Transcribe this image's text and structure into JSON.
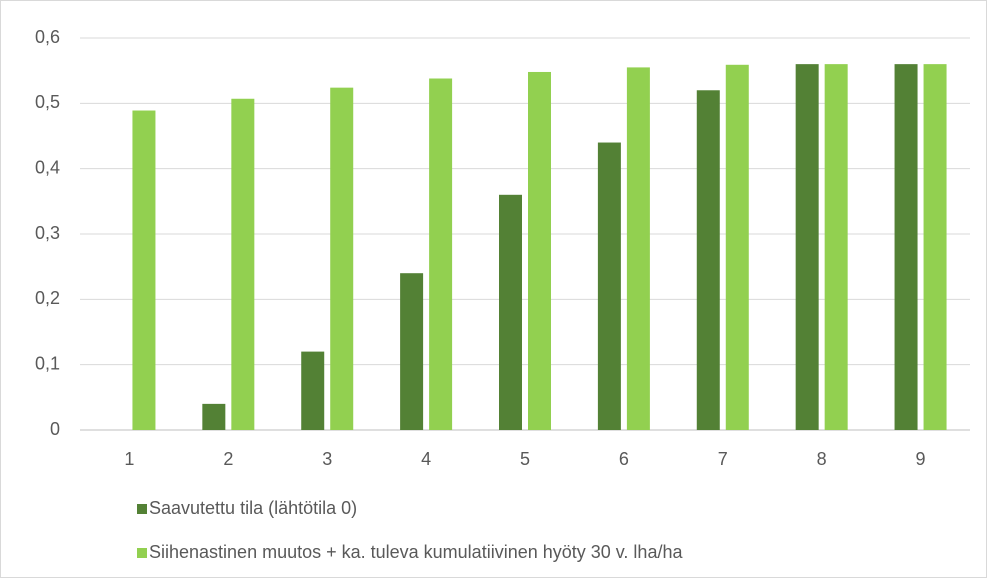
{
  "chart_data": {
    "type": "bar",
    "categories": [
      "1",
      "2",
      "3",
      "4",
      "5",
      "6",
      "7",
      "8",
      "9"
    ],
    "series": [
      {
        "name": "Saavutettu tila (lähtötila 0)",
        "color": "#538135",
        "values": [
          0,
          0.04,
          0.12,
          0.24,
          0.36,
          0.44,
          0.52,
          0.56,
          0.56
        ]
      },
      {
        "name": "Siihenastinen muutos + ka. tuleva kumulatiivinen hyöty 30 v. lha/ha",
        "color": "#92d050",
        "values": [
          0.489,
          0.507,
          0.524,
          0.538,
          0.548,
          0.555,
          0.559,
          0.56,
          0.56
        ]
      }
    ],
    "ylim": [
      0,
      0.6
    ],
    "yticks": [
      0,
      {
        "value": 0.1,
        "label": "0,1"
      },
      {
        "value": 0.2,
        "label": "0,2"
      },
      {
        "value": 0.3,
        "label": "0,3"
      },
      {
        "value": 0.4,
        "label": "0,4"
      },
      {
        "value": 0.5,
        "label": "0,5"
      },
      {
        "value": 0.6,
        "label": "0,6"
      }
    ],
    "grid": true,
    "legend": "bottom"
  }
}
